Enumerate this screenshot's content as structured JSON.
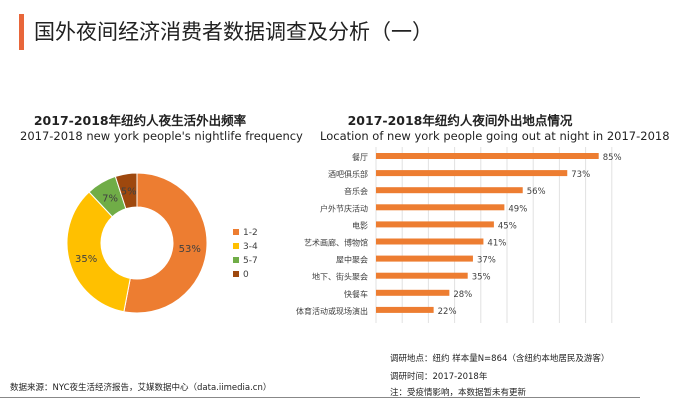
{
  "header": {
    "title": "国外夜间经济消费者数据调查及分析（一）"
  },
  "colors": {
    "accent": "#e8663a",
    "orange": "#ed7d31",
    "yellow": "#ffc000",
    "green": "#70ad47",
    "brown": "#9e480e"
  },
  "chart_data": [
    {
      "type": "pie",
      "title": "2017-2018年纽约人夜生活外出频率",
      "subtitle": "2017-2018 new york people's nightlife frequency",
      "donut": true,
      "legend": "right",
      "categories": [
        "1-2",
        "3-4",
        "5-7",
        "0"
      ],
      "values": [
        53,
        35,
        7,
        5
      ],
      "labels": [
        "53%",
        "35%",
        "7%",
        "5%"
      ],
      "colors": [
        "#ed7d31",
        "#ffc000",
        "#70ad47",
        "#9e480e"
      ]
    },
    {
      "type": "bar",
      "orientation": "horizontal",
      "title": "2017-2018年纽约人夜间外出地点情况",
      "subtitle": "Location of new york people going out at night in 2017-2018",
      "categories": [
        "餐厅",
        "酒吧俱乐部",
        "音乐会",
        "户外节庆活动",
        "电影",
        "艺术画廊、博物馆",
        "屋中聚会",
        "地下、街头聚会",
        "快餐车",
        "体育活动或现场演出"
      ],
      "values": [
        85,
        73,
        56,
        49,
        45,
        41,
        37,
        35,
        28,
        22
      ],
      "labels": [
        "85%",
        "73%",
        "56%",
        "49%",
        "45%",
        "41%",
        "37%",
        "35%",
        "28%",
        "22%"
      ],
      "xlim": [
        0,
        90
      ],
      "grid": true,
      "color": "#ed7d31"
    }
  ],
  "footer": {
    "source": "数据来源：NYC夜生活经济报告，艾媒数据中心（data.iimedia.cn）",
    "location": "调研地点：纽约    样本量N=864（含纽约本地居民及游客）",
    "time": "调研时间：2017-2018年",
    "note": "注：受疫情影响，本数据暂未有更新"
  }
}
